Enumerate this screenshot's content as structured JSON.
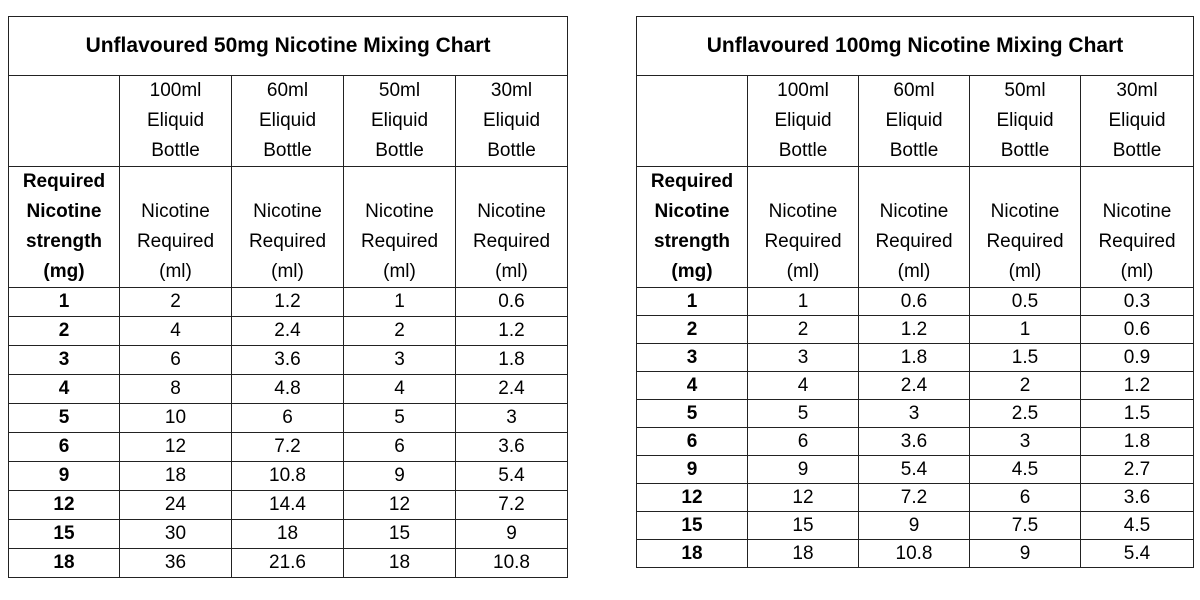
{
  "charts": [
    {
      "title": "Unflavoured 50mg Nicotine Mixing Chart",
      "bottles": [
        "100ml",
        "60ml",
        "50ml",
        "30ml"
      ],
      "bottle_word1": "Eliquid",
      "bottle_word2": "Bottle",
      "strength_label": [
        "Required",
        "Nicotine",
        "strength",
        "(mg)"
      ],
      "req_label": [
        "Nicotine",
        "Required",
        "(ml)"
      ],
      "rows": [
        [
          "1",
          "2",
          "1.2",
          "1",
          "0.6"
        ],
        [
          "2",
          "4",
          "2.4",
          "2",
          "1.2"
        ],
        [
          "3",
          "6",
          "3.6",
          "3",
          "1.8"
        ],
        [
          "4",
          "8",
          "4.8",
          "4",
          "2.4"
        ],
        [
          "5",
          "10",
          "6",
          "5",
          "3"
        ],
        [
          "6",
          "12",
          "7.2",
          "6",
          "3.6"
        ],
        [
          "9",
          "18",
          "10.8",
          "9",
          "5.4"
        ],
        [
          "12",
          "24",
          "14.4",
          "12",
          "7.2"
        ],
        [
          "15",
          "30",
          "18",
          "15",
          "9"
        ],
        [
          "18",
          "36",
          "21.6",
          "18",
          "10.8"
        ]
      ]
    },
    {
      "title": "Unflavoured 100mg Nicotine Mixing Chart",
      "bottles": [
        "100ml",
        "60ml",
        "50ml",
        "30ml"
      ],
      "bottle_word1": "Eliquid",
      "bottle_word2": "Bottle",
      "strength_label": [
        "Required",
        "Nicotine",
        "strength",
        "(mg)"
      ],
      "req_label": [
        "Nicotine",
        "Required",
        "(ml)"
      ],
      "rows": [
        [
          "1",
          "1",
          "0.6",
          "0.5",
          "0.3"
        ],
        [
          "2",
          "2",
          "1.2",
          "1",
          "0.6"
        ],
        [
          "3",
          "3",
          "1.8",
          "1.5",
          "0.9"
        ],
        [
          "4",
          "4",
          "2.4",
          "2",
          "1.2"
        ],
        [
          "5",
          "5",
          "3",
          "2.5",
          "1.5"
        ],
        [
          "6",
          "6",
          "3.6",
          "3",
          "1.8"
        ],
        [
          "9",
          "9",
          "5.4",
          "4.5",
          "2.7"
        ],
        [
          "12",
          "12",
          "7.2",
          "6",
          "3.6"
        ],
        [
          "15",
          "15",
          "9",
          "7.5",
          "4.5"
        ],
        [
          "18",
          "18",
          "10.8",
          "9",
          "5.4"
        ]
      ]
    }
  ]
}
